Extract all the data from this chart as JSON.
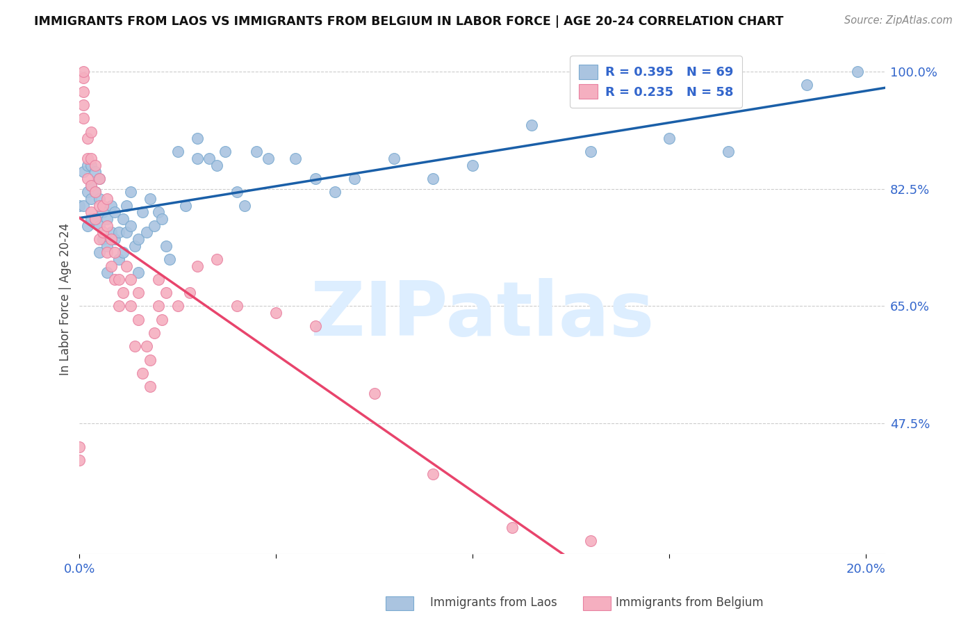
{
  "title": "IMMIGRANTS FROM LAOS VS IMMIGRANTS FROM BELGIUM IN LABOR FORCE | AGE 20-24 CORRELATION CHART",
  "source": "Source: ZipAtlas.com",
  "ylabel": "In Labor Force | Age 20-24",
  "xlim": [
    0.0,
    0.205
  ],
  "ylim": [
    0.28,
    1.04
  ],
  "xticks": [
    0.0,
    0.05,
    0.1,
    0.15,
    0.2
  ],
  "xticklabels": [
    "0.0%",
    "",
    "",
    "",
    "20.0%"
  ],
  "ytick_values": [
    0.475,
    0.65,
    0.825,
    1.0
  ],
  "ytick_labels": [
    "47.5%",
    "65.0%",
    "82.5%",
    "100.0%"
  ],
  "laos_R": 0.395,
  "laos_N": 69,
  "belgium_R": 0.235,
  "belgium_N": 58,
  "laos_color": "#aac4e0",
  "laos_edge_color": "#7aaad0",
  "laos_line_color": "#1a5fa8",
  "belgium_color": "#f5afc0",
  "belgium_edge_color": "#e880a0",
  "belgium_line_color": "#e8446c",
  "axis_text_color": "#3366cc",
  "title_color": "#111111",
  "source_color": "#888888",
  "ylabel_color": "#444444",
  "watermark": "ZIPatlas",
  "watermark_color": "#ddeeff",
  "background_color": "#ffffff",
  "grid_color": "#cccccc",
  "laos_x": [
    0.0,
    0.001,
    0.001,
    0.002,
    0.002,
    0.002,
    0.003,
    0.003,
    0.003,
    0.003,
    0.004,
    0.004,
    0.004,
    0.005,
    0.005,
    0.005,
    0.005,
    0.006,
    0.006,
    0.007,
    0.007,
    0.007,
    0.008,
    0.008,
    0.009,
    0.009,
    0.01,
    0.01,
    0.011,
    0.011,
    0.012,
    0.012,
    0.013,
    0.013,
    0.014,
    0.015,
    0.015,
    0.016,
    0.017,
    0.018,
    0.019,
    0.02,
    0.021,
    0.022,
    0.023,
    0.025,
    0.027,
    0.03,
    0.03,
    0.033,
    0.035,
    0.037,
    0.04,
    0.042,
    0.045,
    0.048,
    0.055,
    0.06,
    0.065,
    0.07,
    0.08,
    0.09,
    0.1,
    0.115,
    0.13,
    0.15,
    0.165,
    0.185,
    0.198
  ],
  "laos_y": [
    0.8,
    0.8,
    0.85,
    0.77,
    0.82,
    0.86,
    0.78,
    0.81,
    0.83,
    0.86,
    0.78,
    0.82,
    0.85,
    0.73,
    0.77,
    0.81,
    0.84,
    0.75,
    0.79,
    0.7,
    0.74,
    0.78,
    0.76,
    0.8,
    0.75,
    0.79,
    0.72,
    0.76,
    0.73,
    0.78,
    0.76,
    0.8,
    0.77,
    0.82,
    0.74,
    0.7,
    0.75,
    0.79,
    0.76,
    0.81,
    0.77,
    0.79,
    0.78,
    0.74,
    0.72,
    0.88,
    0.8,
    0.87,
    0.9,
    0.87,
    0.86,
    0.88,
    0.82,
    0.8,
    0.88,
    0.87,
    0.87,
    0.84,
    0.82,
    0.84,
    0.87,
    0.84,
    0.86,
    0.92,
    0.88,
    0.9,
    0.88,
    0.98,
    1.0
  ],
  "belgium_x": [
    0.0,
    0.0,
    0.001,
    0.001,
    0.001,
    0.001,
    0.001,
    0.002,
    0.002,
    0.002,
    0.003,
    0.003,
    0.003,
    0.003,
    0.004,
    0.004,
    0.004,
    0.005,
    0.005,
    0.005,
    0.006,
    0.006,
    0.007,
    0.007,
    0.007,
    0.008,
    0.008,
    0.009,
    0.009,
    0.01,
    0.01,
    0.011,
    0.012,
    0.013,
    0.013,
    0.014,
    0.015,
    0.015,
    0.016,
    0.017,
    0.018,
    0.018,
    0.019,
    0.02,
    0.02,
    0.021,
    0.022,
    0.025,
    0.028,
    0.03,
    0.035,
    0.04,
    0.05,
    0.06,
    0.075,
    0.09,
    0.11,
    0.13
  ],
  "belgium_y": [
    0.42,
    0.44,
    0.93,
    0.95,
    0.97,
    0.99,
    1.0,
    0.84,
    0.87,
    0.9,
    0.79,
    0.83,
    0.87,
    0.91,
    0.78,
    0.82,
    0.86,
    0.75,
    0.8,
    0.84,
    0.76,
    0.8,
    0.73,
    0.77,
    0.81,
    0.71,
    0.75,
    0.69,
    0.73,
    0.65,
    0.69,
    0.67,
    0.71,
    0.65,
    0.69,
    0.59,
    0.63,
    0.67,
    0.55,
    0.59,
    0.53,
    0.57,
    0.61,
    0.65,
    0.69,
    0.63,
    0.67,
    0.65,
    0.67,
    0.71,
    0.72,
    0.65,
    0.64,
    0.62,
    0.52,
    0.4,
    0.32,
    0.3
  ]
}
